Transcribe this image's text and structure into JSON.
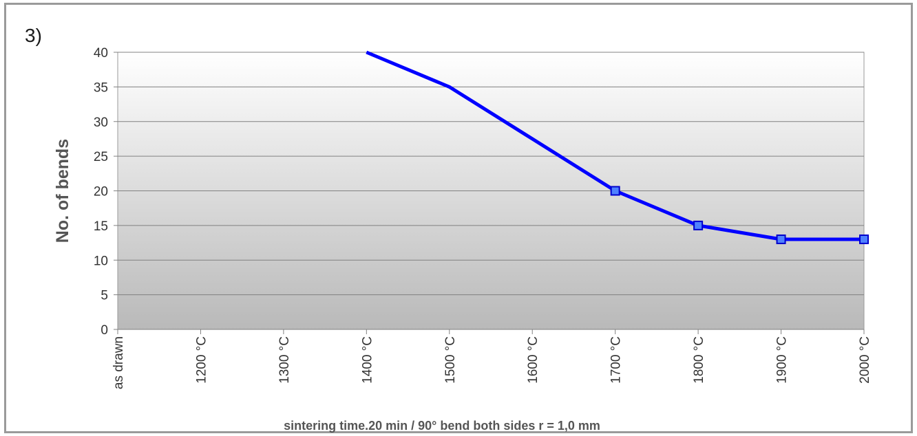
{
  "panel_label": "3)",
  "chart_data": {
    "type": "line",
    "title": "",
    "xlabel": "sintering time.20 min / 90° bend both sides r = 1,0 mm",
    "ylabel": "No. of bends",
    "categories": [
      "as drawn",
      "1200 °C",
      "1300 °C",
      "1400 °C",
      "1500 °C",
      "1600 °C",
      "1700 °C",
      "1800 °C",
      "1900 °C",
      "2000 °C"
    ],
    "yticks": [
      "0",
      "5",
      "10",
      "15",
      "20",
      "25",
      "30",
      "35",
      "40"
    ],
    "ylim": [
      0,
      40
    ],
    "grid": true,
    "series": [
      {
        "values": [
          null,
          null,
          null,
          40,
          35,
          27.5,
          20,
          15,
          13,
          13
        ],
        "markers": [
          false,
          false,
          false,
          false,
          false,
          false,
          true,
          true,
          true,
          true
        ],
        "color": "#0000ff"
      }
    ],
    "colors": {
      "plot_gradient_top": "#ffffff",
      "plot_gradient_bottom": "#b9b9b9",
      "line": "#0000ff",
      "marker_fill": "#4f81ff",
      "marker_edge": "#0000cc",
      "frame": "#9a9a9a"
    }
  }
}
